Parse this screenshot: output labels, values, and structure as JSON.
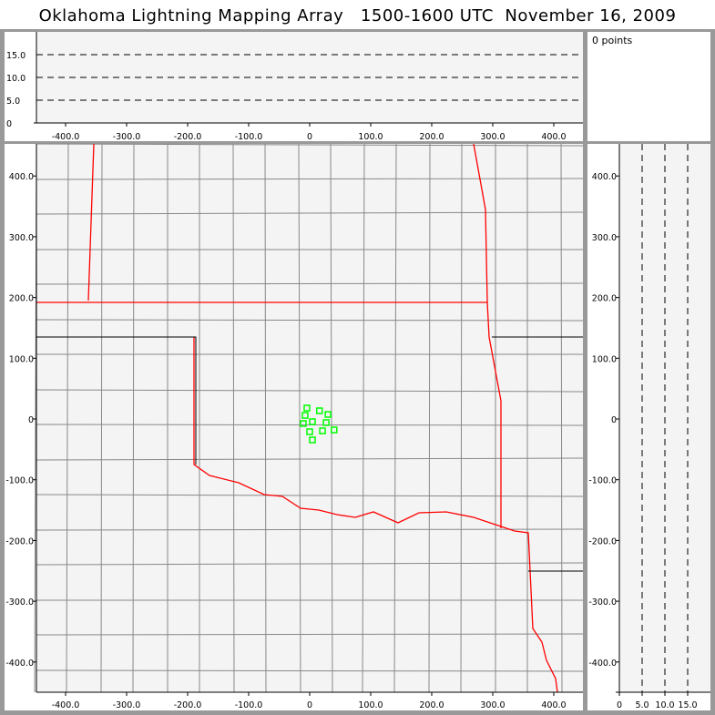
{
  "title": "Oklahoma Lightning Mapping Array   1500-1600 UTC  November 16, 2009",
  "points_label": "0 points",
  "colors": {
    "background": "#999999",
    "plot": "#f4f4f4",
    "state_border": "#ff0000",
    "county": "#888888",
    "source": "#00ff00"
  },
  "chart_data": [
    {
      "type": "line",
      "panel": "altitude-vs-x",
      "xlim": [
        -447,
        447
      ],
      "ylim": [
        0,
        19
      ],
      "xticks": [
        "-400.0",
        "-300.0",
        "-200.0",
        "-100.0",
        "0",
        "100.0",
        "200.0",
        "300.0",
        "400.0"
      ],
      "yticks": [
        "0",
        "5.0",
        "10.0",
        "15.0"
      ],
      "grid": "dashed at 5, 10, 15",
      "series": []
    },
    {
      "type": "scatter",
      "panel": "plan-view-map",
      "xlim": [
        -447,
        447
      ],
      "ylim": [
        -447,
        447
      ],
      "xticks": [
        "-400.0",
        "-300.0",
        "-200.0",
        "-100.0",
        "0",
        "100.0",
        "200.0",
        "300.0",
        "400.0"
      ],
      "yticks": [
        "400.0",
        "300.0",
        "200.0",
        "100.0",
        "0",
        "-100.0",
        "-200.0",
        "-300.0",
        "-400.0"
      ],
      "marker": "hollow square",
      "points": [
        [
          -4.5,
          18
        ],
        [
          16,
          13.5
        ],
        [
          30,
          7.5
        ],
        [
          -7.5,
          6
        ],
        [
          -10.5,
          -7.5
        ],
        [
          4.5,
          -4.5
        ],
        [
          27,
          -6
        ],
        [
          0,
          -21
        ],
        [
          21,
          -19.5
        ],
        [
          40,
          -18
        ],
        [
          4.5,
          -34.5
        ]
      ]
    },
    {
      "type": "line",
      "panel": "y-vs-altitude",
      "xlim": [
        0,
        20
      ],
      "ylim": [
        -447,
        447
      ],
      "xticks": [
        "0",
        "5.0",
        "10.0",
        "15.0"
      ],
      "yticks": [
        "400.0",
        "300.0",
        "200.0",
        "100.0",
        "0",
        "-100.0",
        "-200.0",
        "-300.0",
        "-400.0"
      ],
      "grid": "dashed at 5, 10, 15",
      "series": []
    }
  ]
}
